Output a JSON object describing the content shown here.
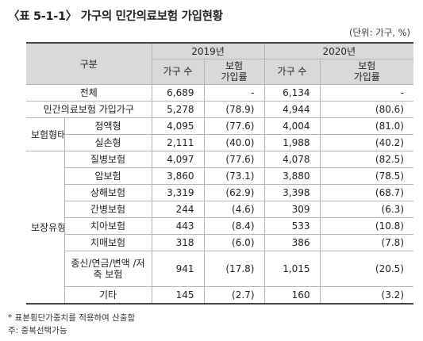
{
  "title": "〈표 5-1-1〉 가구의 민간의료보험 가입현황",
  "unit": "(단위: 가구, %)",
  "header": {
    "category": "구분",
    "year1": "2019년",
    "year2": "2020년",
    "households": "가구 수",
    "rate": "보험\n가입률"
  },
  "rows": {
    "total": {
      "label": "전체",
      "h2019": "6,689",
      "r2019": "-",
      "h2020": "6,134",
      "r2020": "-"
    },
    "insured": {
      "label": "민간의료보험 가입가구",
      "h2019": "5,278",
      "r2019": "(78.9)",
      "h2020": "4,944",
      "r2020": "(80.6)"
    },
    "group_form": "보험형태",
    "fixed": {
      "label": "정액형",
      "h2019": "4,095",
      "r2019": "(77.6)",
      "h2020": "4,004",
      "r2020": "(81.0)"
    },
    "actual": {
      "label": "실손형",
      "h2019": "2,111",
      "r2019": "(40.0)",
      "h2020": "1,988",
      "r2020": "(40.2)"
    },
    "group_type": "보장유형",
    "disease": {
      "label": "질병보험",
      "h2019": "4,097",
      "r2019": "(77.6)",
      "h2020": "4,078",
      "r2020": "(82.5)"
    },
    "cancer": {
      "label": "암보험",
      "h2019": "3,860",
      "r2019": "(73.1)",
      "h2020": "3,880",
      "r2020": "(78.5)"
    },
    "injury": {
      "label": "상해보험",
      "h2019": "3,319",
      "r2019": "(62.9)",
      "h2020": "3,398",
      "r2020": "(68.7)"
    },
    "nursing": {
      "label": "간병보험",
      "h2019": "244",
      "r2019": "(4.6)",
      "h2020": "309",
      "r2020": "(6.3)"
    },
    "dental": {
      "label": "치아보험",
      "h2019": "443",
      "r2019": "(8.4)",
      "h2020": "533",
      "r2020": "(10.8)"
    },
    "dementia": {
      "label": "치매보험",
      "h2019": "318",
      "r2019": "(6.0)",
      "h2020": "386",
      "r2020": "(7.8)"
    },
    "life": {
      "label": "종신/연금/변액\n/저축 보험",
      "h2019": "941",
      "r2019": "(17.8)",
      "h2020": "1,015",
      "r2020": "(20.5)"
    },
    "other": {
      "label": "기타",
      "h2019": "145",
      "r2019": "(2.7)",
      "h2020": "160",
      "r2020": "(3.2)"
    }
  },
  "notes": {
    "line1": "* 표본횡단가중치를 적용하여 산출함",
    "line2": "주: 중복선택가능"
  }
}
